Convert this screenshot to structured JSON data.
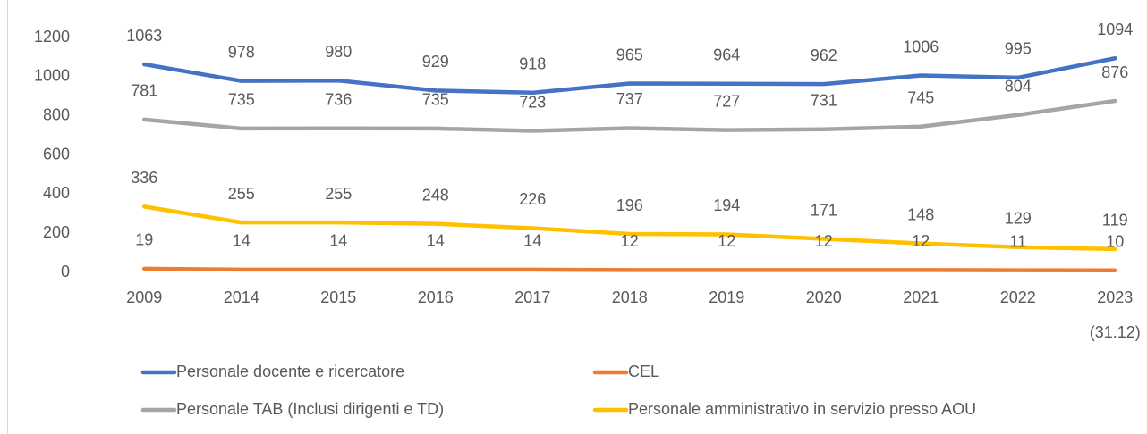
{
  "chart_data": {
    "type": "line",
    "categories": [
      "2009",
      "2014",
      "2015",
      "2016",
      "2017",
      "2018",
      "2019",
      "2020",
      "2021",
      "2022",
      "2023 (31.12)"
    ],
    "series": [
      {
        "name": "Personale docente e ricercatore",
        "color": "#4472c4",
        "values": [
          1063,
          978,
          980,
          929,
          918,
          965,
          964,
          962,
          1006,
          995,
          1094
        ]
      },
      {
        "name": "CEL",
        "color": "#ed7d31",
        "values": [
          19,
          14,
          14,
          14,
          14,
          12,
          12,
          12,
          12,
          11,
          10
        ]
      },
      {
        "name": "Personale TAB (Inclusi dirigenti e TD)",
        "color": "#a5a5a5",
        "values": [
          781,
          735,
          736,
          735,
          723,
          737,
          727,
          731,
          745,
          804,
          876
        ]
      },
      {
        "name": "Personale amministrativo in servizio presso AOU",
        "color": "#ffc000",
        "values": [
          336,
          255,
          255,
          248,
          226,
          196,
          194,
          171,
          148,
          129,
          119
        ]
      }
    ],
    "ylim": [
      0,
      1200
    ],
    "yticks": [
      0,
      200,
      400,
      600,
      800,
      1000,
      1200
    ],
    "grid": false,
    "legend": "bottom"
  }
}
